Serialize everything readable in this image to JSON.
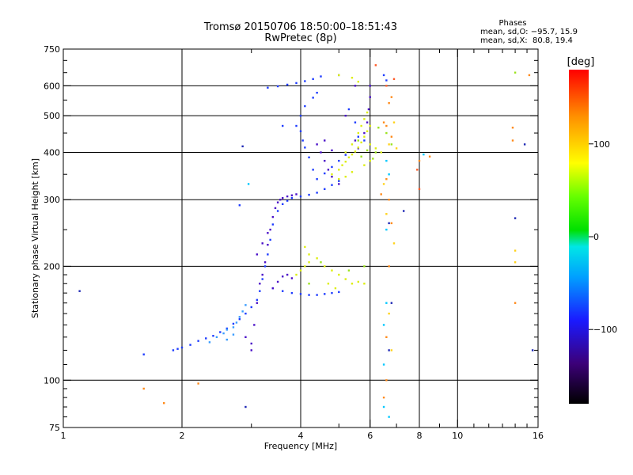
{
  "chart_data": {
    "type": "scatter",
    "title": "Tromsø 20150706 18:50:00–18:51:43",
    "subtitle": "RwPretec (8p)",
    "xlabel": "Frequency [MHz]",
    "ylabel": "Stationary phase Virtual Height [km]",
    "x_scale": "log",
    "y_scale": "log",
    "xlim": [
      1,
      16
    ],
    "ylim": [
      75,
      750
    ],
    "x_ticks": [
      1,
      2,
      4,
      6,
      8,
      10,
      16
    ],
    "y_ticks": [
      75,
      100,
      200,
      300,
      400,
      500,
      600,
      750
    ],
    "x_gridlines": [
      2,
      4,
      6,
      8,
      10
    ],
    "y_gridlines": [
      100,
      200,
      300,
      400,
      500,
      600
    ],
    "grid": true,
    "phases": {
      "title": "Phases",
      "line_o": "mean, sd,O: −95.7, 15.9",
      "line_x": "mean, sd,X:  80.8, 19.4"
    },
    "colorbar": {
      "label": "[deg]",
      "range": [
        -180,
        180
      ],
      "ticks": [
        "100",
        "0",
        "−100"
      ],
      "tick_values": [
        100,
        0,
        -100
      ]
    },
    "series": [
      {
        "name": "",
        "color": "#1e3cff",
        "points": [
          [
            1.9,
            120
          ],
          [
            1.95,
            121
          ],
          [
            2.0,
            122
          ],
          [
            2.1,
            124
          ],
          [
            2.2,
            127
          ],
          [
            2.3,
            129
          ],
          [
            2.4,
            131
          ],
          [
            2.5,
            134
          ],
          [
            2.6,
            137
          ],
          [
            2.7,
            141
          ],
          [
            2.8,
            145
          ],
          [
            2.9,
            150
          ],
          [
            3.0,
            156
          ],
          [
            3.1,
            163
          ],
          [
            3.15,
            172
          ],
          [
            3.2,
            185
          ],
          [
            3.25,
            200
          ],
          [
            3.3,
            215
          ],
          [
            3.35,
            235
          ],
          [
            3.4,
            258
          ],
          [
            3.5,
            280
          ],
          [
            3.6,
            292
          ],
          [
            3.7,
            298
          ],
          [
            3.8,
            303
          ],
          [
            4.0,
            306
          ],
          [
            4.2,
            309
          ],
          [
            4.4,
            313
          ],
          [
            4.6,
            320
          ],
          [
            4.8,
            328
          ],
          [
            5.0,
            336
          ],
          [
            4.3,
            360
          ],
          [
            4.2,
            388
          ],
          [
            4.1,
            412
          ],
          [
            4.05,
            430
          ],
          [
            4.0,
            455
          ],
          [
            4.4,
            340
          ],
          [
            4.6,
            352
          ],
          [
            4.8,
            366
          ],
          [
            5.0,
            380
          ],
          [
            5.2,
            394
          ],
          [
            3.9,
            470
          ],
          [
            4.0,
            500
          ],
          [
            4.1,
            530
          ],
          [
            4.3,
            558
          ],
          [
            4.4,
            575
          ],
          [
            3.3,
            593
          ],
          [
            3.5,
            598
          ],
          [
            3.7,
            604
          ],
          [
            3.9,
            610
          ],
          [
            4.1,
            617
          ],
          [
            4.3,
            625
          ],
          [
            4.5,
            635
          ],
          [
            5.0,
            640
          ],
          [
            5.3,
            520
          ],
          [
            5.5,
            480
          ],
          [
            5.6,
            440
          ],
          [
            5.8,
            430
          ],
          [
            6.5,
            640
          ],
          [
            6.6,
            620
          ],
          [
            2.8,
            290
          ],
          [
            1.6,
            117
          ],
          [
            3.6,
            470
          ],
          [
            3.4,
            175
          ],
          [
            3.6,
            172
          ],
          [
            3.8,
            170
          ],
          [
            4.0,
            169
          ],
          [
            4.2,
            168
          ],
          [
            4.4,
            168
          ],
          [
            4.6,
            169
          ],
          [
            4.8,
            170
          ],
          [
            5.0,
            171
          ]
        ]
      },
      {
        "name": "",
        "color": "#4a10c8",
        "points": [
          [
            3.0,
            125
          ],
          [
            3.05,
            140
          ],
          [
            3.1,
            160
          ],
          [
            3.15,
            180
          ],
          [
            3.2,
            190
          ],
          [
            3.25,
            205
          ],
          [
            3.3,
            228
          ],
          [
            3.35,
            250
          ],
          [
            3.4,
            270
          ],
          [
            3.45,
            285
          ],
          [
            3.5,
            295
          ],
          [
            3.55,
            300
          ],
          [
            3.6,
            303
          ],
          [
            3.7,
            306
          ],
          [
            3.8,
            308
          ],
          [
            3.9,
            310
          ],
          [
            3.4,
            175
          ],
          [
            3.5,
            182
          ],
          [
            3.6,
            188
          ],
          [
            3.7,
            190
          ],
          [
            3.8,
            186
          ],
          [
            4.5,
            400
          ],
          [
            4.6,
            380
          ],
          [
            4.7,
            360
          ],
          [
            4.8,
            345
          ],
          [
            5.0,
            330
          ],
          [
            5.5,
            430
          ],
          [
            5.6,
            410
          ],
          [
            5.8,
            450
          ],
          [
            5.9,
            480
          ],
          [
            5.95,
            520
          ],
          [
            6.0,
            560
          ],
          [
            6.0,
            600
          ],
          [
            5.5,
            600
          ],
          [
            5.2,
            500
          ],
          [
            3.1,
            215
          ],
          [
            3.2,
            230
          ],
          [
            3.3,
            245
          ],
          [
            2.9,
            130
          ],
          [
            3.0,
            120
          ],
          [
            4.4,
            420
          ],
          [
            4.6,
            430
          ],
          [
            4.8,
            405
          ]
        ]
      },
      {
        "name": "",
        "color": "#3a9cff",
        "points": [
          [
            2.35,
            126
          ],
          [
            2.45,
            130
          ],
          [
            2.55,
            133
          ],
          [
            2.6,
            136
          ],
          [
            2.7,
            138
          ],
          [
            2.75,
            142
          ],
          [
            2.8,
            147
          ],
          [
            2.85,
            152
          ],
          [
            2.9,
            158
          ],
          [
            2.6,
            128
          ],
          [
            2.7,
            132
          ]
        ]
      },
      {
        "name": "",
        "color": "#ddee10",
        "points": [
          [
            5.0,
            360
          ],
          [
            5.1,
            370
          ],
          [
            5.2,
            378
          ],
          [
            5.3,
            388
          ],
          [
            5.4,
            395
          ],
          [
            5.5,
            402
          ],
          [
            5.6,
            412
          ],
          [
            5.7,
            425
          ],
          [
            5.8,
            440
          ],
          [
            5.9,
            455
          ],
          [
            6.0,
            470
          ],
          [
            5.2,
            400
          ],
          [
            5.4,
            420
          ],
          [
            5.6,
            450
          ],
          [
            5.7,
            470
          ],
          [
            5.8,
            490
          ],
          [
            5.9,
            510
          ],
          [
            4.8,
            350
          ],
          [
            5.0,
            340
          ],
          [
            5.2,
            345
          ],
          [
            5.4,
            355
          ],
          [
            3.9,
            190
          ],
          [
            4.0,
            195
          ],
          [
            4.1,
            200
          ],
          [
            4.2,
            205
          ],
          [
            4.4,
            210
          ],
          [
            4.6,
            200
          ],
          [
            4.8,
            195
          ],
          [
            5.0,
            190
          ],
          [
            5.2,
            185
          ],
          [
            5.4,
            180
          ],
          [
            5.6,
            182
          ],
          [
            5.8,
            180
          ],
          [
            4.1,
            225
          ],
          [
            4.2,
            215
          ],
          [
            4.7,
            180
          ],
          [
            4.9,
            175
          ],
          [
            5.0,
            640
          ],
          [
            5.4,
            630
          ],
          [
            5.6,
            615
          ],
          [
            6.0,
            420
          ],
          [
            6.2,
            410
          ],
          [
            6.0,
            380
          ],
          [
            5.8,
            370
          ],
          [
            6.4,
            400
          ]
        ]
      },
      {
        "name": "",
        "color": "#9be31e",
        "points": [
          [
            5.6,
            430
          ],
          [
            5.9,
            405
          ],
          [
            6.1,
            385
          ],
          [
            6.3,
            465
          ],
          [
            6.6,
            450
          ],
          [
            5.3,
            195
          ],
          [
            5.8,
            200
          ],
          [
            4.5,
            205
          ],
          [
            4.2,
            180
          ],
          [
            14.0,
            650
          ],
          [
            6.8,
            420
          ],
          [
            6.2,
            400
          ],
          [
            5.7,
            390
          ]
        ]
      },
      {
        "name": "",
        "color": "#ff8a1a",
        "points": [
          [
            6.5,
            480
          ],
          [
            6.6,
            470
          ],
          [
            6.7,
            540
          ],
          [
            6.8,
            560
          ],
          [
            6.7,
            300
          ],
          [
            6.6,
            340
          ],
          [
            6.8,
            260
          ],
          [
            6.7,
            200
          ],
          [
            6.6,
            130
          ],
          [
            6.5,
            90
          ],
          [
            6.6,
            100
          ],
          [
            8.5,
            390
          ],
          [
            8.0,
            380
          ],
          [
            13.8,
            465
          ],
          [
            13.8,
            430
          ],
          [
            14.0,
            160
          ],
          [
            15.2,
            640
          ],
          [
            1.6,
            95
          ],
          [
            1.8,
            87
          ],
          [
            2.2,
            98
          ],
          [
            6.8,
            440
          ],
          [
            6.4,
            310
          ]
        ]
      },
      {
        "name": "",
        "color": "#ffd21a",
        "points": [
          [
            6.9,
            480
          ],
          [
            6.7,
            420
          ],
          [
            7.0,
            410
          ],
          [
            6.5,
            330
          ],
          [
            6.6,
            275
          ],
          [
            6.9,
            230
          ],
          [
            14.0,
            220
          ],
          [
            14.0,
            205
          ],
          [
            6.7,
            150
          ],
          [
            6.8,
            120
          ]
        ]
      },
      {
        "name": "",
        "color": "#00c8ff",
        "points": [
          [
            6.6,
            380
          ],
          [
            6.7,
            350
          ],
          [
            6.6,
            250
          ],
          [
            6.6,
            160
          ],
          [
            6.5,
            140
          ],
          [
            6.5,
            110
          ],
          [
            6.5,
            85
          ],
          [
            6.7,
            80
          ],
          [
            2.95,
            330
          ],
          [
            8.2,
            395
          ]
        ]
      },
      {
        "name": "",
        "color": "#1e28b4",
        "points": [
          [
            2.85,
            415
          ],
          [
            1.1,
            172
          ],
          [
            2.9,
            85
          ],
          [
            7.3,
            280
          ],
          [
            14.0,
            268
          ],
          [
            14.8,
            420
          ],
          [
            15.5,
            120
          ],
          [
            6.7,
            260
          ],
          [
            6.8,
            160
          ],
          [
            6.7,
            120
          ]
        ]
      },
      {
        "name": "",
        "color": "#ff5a28",
        "points": [
          [
            7.9,
            360
          ],
          [
            8.0,
            320
          ],
          [
            6.6,
            600
          ],
          [
            6.2,
            680
          ],
          [
            6.9,
            625
          ]
        ]
      }
    ]
  }
}
